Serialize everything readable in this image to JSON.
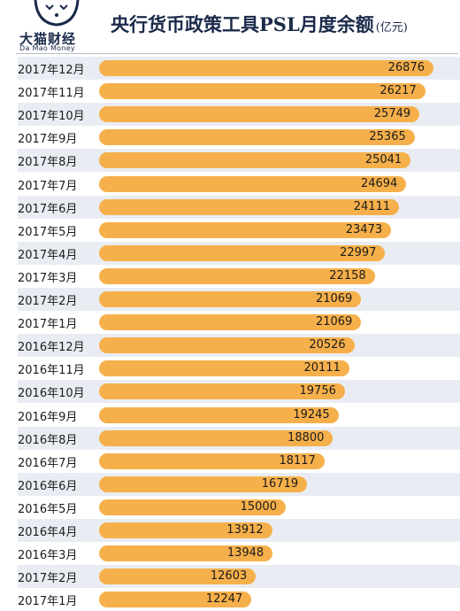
{
  "brand": {
    "name_cn": "大猫财经",
    "name_en": "Da Mao Money"
  },
  "header": {
    "title": "央行货币政策工具PSL月度余额",
    "unit": "(亿元)"
  },
  "colors": {
    "bar": "#f6b04b",
    "row_shade": "#e9edf3",
    "title": "#1b2a4a"
  },
  "chart_data": {
    "type": "bar",
    "orientation": "horizontal",
    "title": "央行货币政策工具PSL月度余额",
    "unit": "(亿元)",
    "categories": [
      "2017年12月",
      "2017年11月",
      "2017年10月",
      "2017年9月",
      "2017年8月",
      "2017年7月",
      "2017年6月",
      "2017年5月",
      "2017年4月",
      "2017年3月",
      "2017年2月",
      "2017年1月",
      "2016年12月",
      "2016年11月",
      "2016年10月",
      "2016年9月",
      "2016年8月",
      "2016年7月",
      "2016年6月",
      "2016年5月",
      "2016年4月",
      "2016年3月",
      "2017年2月",
      "2017年1月"
    ],
    "values": [
      26876,
      26217,
      25749,
      25365,
      25041,
      24694,
      24111,
      23473,
      22997,
      22158,
      21069,
      21069,
      20526,
      20111,
      19756,
      19245,
      18800,
      18117,
      16719,
      15000,
      13912,
      13948,
      12603,
      12247
    ],
    "data_labels": true,
    "grid": false
  }
}
